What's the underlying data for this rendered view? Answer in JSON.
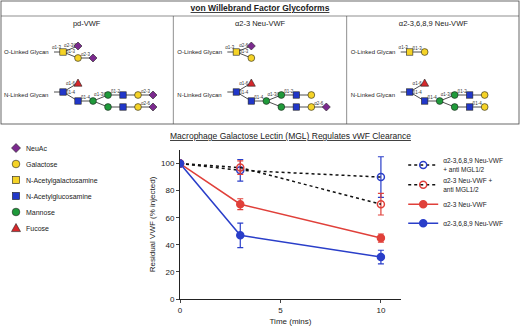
{
  "diagram": {
    "title": "von Willebrand Factor Glycoforms",
    "symbols": [
      {
        "name": "NeuAc",
        "marker": "diamond",
        "color": "#7b2a8e"
      },
      {
        "name": "Galactose",
        "marker": "circle",
        "color": "#f5d327"
      },
      {
        "name": "N-Acetylgalactosamine",
        "marker": "square",
        "color": "#f5d327"
      },
      {
        "name": "N-Acetylglucosamine",
        "marker": "square",
        "color": "#2137c9"
      },
      {
        "name": "Mannose",
        "marker": "circle",
        "color": "#1f9a3a"
      },
      {
        "name": "Fucose",
        "marker": "triangle",
        "color": "#d6272b"
      }
    ],
    "glycoforms": [
      {
        "name": "pd-VWF",
        "glycans": [
          {
            "label": "O-Linked Glycan",
            "residues": [
              {
                "type": "N-Acetylgalactosamine",
                "parent": null,
                "link": "α1-3"
              },
              {
                "type": "NeuAc",
                "parent": 0,
                "link": "α2-3/6"
              },
              {
                "type": "Galactose",
                "parent": 0,
                "link": "β1-3"
              },
              {
                "type": "NeuAc",
                "parent": 2,
                "link": "α2-3"
              }
            ]
          },
          {
            "label": "N-Linked Glycan",
            "residues": [
              {
                "type": "N-Acetylglucosamine",
                "parent": null
              },
              {
                "type": "Fucose",
                "parent": 0,
                "link": "α1-6"
              },
              {
                "type": "N-Acetylglucosamine",
                "parent": 0,
                "link": "β1-4"
              },
              {
                "type": "Mannose",
                "parent": 2,
                "link": "β1-4"
              },
              {
                "type": "Mannose",
                "parent": 3,
                "link": "α1-3/6"
              },
              {
                "type": "N-Acetylglucosamine",
                "parent": 4,
                "link": "β1-2"
              },
              {
                "type": "Galactose",
                "parent": 5
              },
              {
                "type": "NeuAc",
                "parent": 6,
                "link": "α2-3"
              },
              {
                "type": "Mannose",
                "parent": 3
              },
              {
                "type": "N-Acetylglucosamine",
                "parent": 8
              },
              {
                "type": "Galactose",
                "parent": 9
              },
              {
                "type": "NeuAc",
                "parent": 10,
                "link": "α2-6"
              }
            ]
          }
        ]
      },
      {
        "name": "α2-3 Neu-VWF",
        "glycans": [
          {
            "label": "O-Linked Glycan",
            "residues": [
              {
                "type": "N-Acetylgalactosamine",
                "parent": null,
                "link": "α1-3"
              },
              {
                "type": "NeuAc",
                "parent": 0,
                "link": "α2-6"
              },
              {
                "type": "Galactose",
                "parent": 0,
                "link": "β1-3"
              }
            ]
          },
          {
            "label": "N-Linked Glycan",
            "residues": [
              {
                "type": "N-Acetylglucosamine",
                "parent": null
              },
              {
                "type": "Fucose",
                "parent": 0,
                "link": "α1-6"
              },
              {
                "type": "N-Acetylglucosamine",
                "parent": 0,
                "link": "β1-4"
              },
              {
                "type": "Mannose",
                "parent": 2,
                "link": "β1-4"
              },
              {
                "type": "Mannose",
                "parent": 3,
                "link": "α1-3/6"
              },
              {
                "type": "N-Acetylglucosamine",
                "parent": 4,
                "link": "β1-2"
              },
              {
                "type": "Galactose",
                "parent": 5
              },
              {
                "type": "Mannose",
                "parent": 3
              },
              {
                "type": "N-Acetylglucosamine",
                "parent": 7
              },
              {
                "type": "Galactose",
                "parent": 8
              },
              {
                "type": "NeuAc",
                "parent": 9,
                "link": "α2-6"
              }
            ]
          }
        ]
      },
      {
        "name": "α2-3,6,8,9 Neu-VWF",
        "glycans": [
          {
            "label": "O-Linked Glycan",
            "residues": [
              {
                "type": "N-Acetylgalactosamine",
                "parent": null,
                "link": "α1-3"
              },
              {
                "type": "Galactose",
                "parent": 0,
                "link": "β1-3"
              }
            ]
          },
          {
            "label": "N-Linked Glycan",
            "residues": [
              {
                "type": "N-Acetylglucosamine",
                "parent": null
              },
              {
                "type": "Fucose",
                "parent": 0,
                "link": "α1-6"
              },
              {
                "type": "N-Acetylglucosamine",
                "parent": 0,
                "link": "β1-4"
              },
              {
                "type": "Mannose",
                "parent": 2,
                "link": "β1-4"
              },
              {
                "type": "Mannose",
                "parent": 3,
                "link": "α1-3/6"
              },
              {
                "type": "N-Acetylglucosamine",
                "parent": 4,
                "link": "β1-2"
              },
              {
                "type": "Galactose",
                "parent": 5
              },
              {
                "type": "Mannose",
                "parent": 3
              },
              {
                "type": "N-Acetylglucosamine",
                "parent": 7
              },
              {
                "type": "Galactose",
                "parent": 8,
                "link": "β1-4"
              }
            ]
          }
        ]
      }
    ]
  },
  "chart_data": {
    "type": "line",
    "title": "Macrophage Galactose Lectin (MGL) Regulates vWF Clearance",
    "x_label": "Time (mins)",
    "y_label": "Residual VWF (% injected)",
    "x": [
      0,
      3,
      10
    ],
    "xlim": [
      0,
      11
    ],
    "xticks": [
      0,
      5,
      10
    ],
    "ylim": [
      0,
      110
    ],
    "yticks": [
      0,
      20,
      40,
      60,
      80,
      100
    ],
    "grid": false,
    "legend": "right",
    "series": [
      {
        "name": "α2-3,6,8,9 Neu-VWF + anti MGL1/2",
        "color": "#2a3ec9",
        "line_style": "dashed",
        "marker": "open circle",
        "values": [
          100,
          95,
          90
        ],
        "error": [
          0,
          8,
          15
        ]
      },
      {
        "name": "α2-3 Neu-VWF + anti MGL1/2",
        "color": "#e0403a",
        "line_style": "dashed",
        "marker": "open circle",
        "values": [
          100,
          97,
          70
        ],
        "error": [
          0,
          5,
          8
        ]
      },
      {
        "name": "α2-3 Neu-VWF",
        "color": "#e0403a",
        "line_style": "solid",
        "marker": "circle",
        "values": [
          100,
          70,
          45
        ],
        "error": [
          0,
          4,
          3
        ]
      },
      {
        "name": "α2-3,6,8,9 Neu-VWF",
        "color": "#2a3ec9",
        "line_style": "solid",
        "marker": "circle",
        "values": [
          100,
          47,
          31
        ],
        "error": [
          0,
          9,
          5
        ]
      }
    ]
  }
}
